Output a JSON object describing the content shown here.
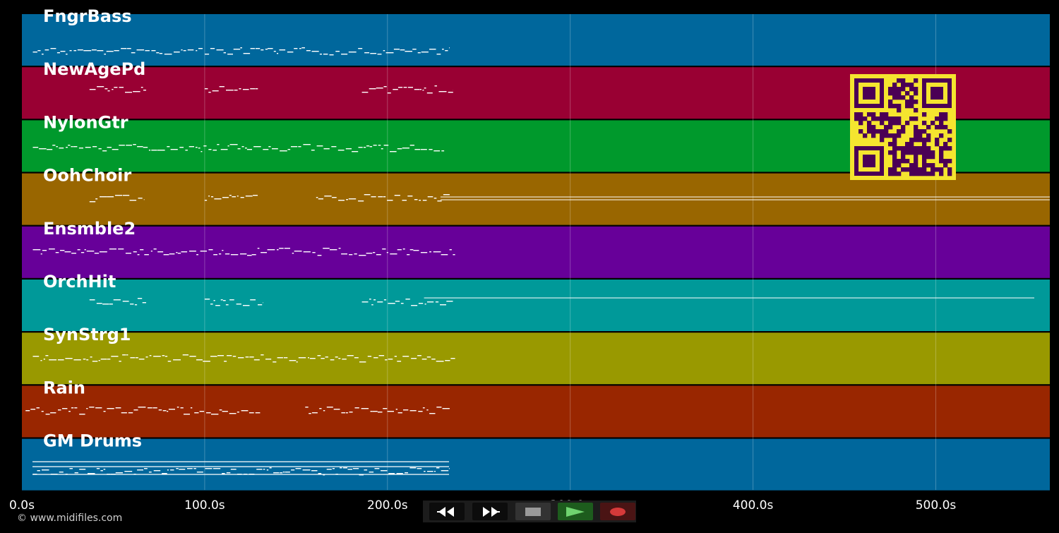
{
  "copyright": "© www.midifiles.com",
  "timeline": {
    "max_seconds": 563,
    "ticks": [
      "0.0s",
      "100.0s",
      "200.0s",
      "300.0s",
      "400.0s",
      "500.0s"
    ]
  },
  "tracks": [
    {
      "name": "FngrBass",
      "color": "#00679c"
    },
    {
      "name": "NewAgePd",
      "color": "#990033"
    },
    {
      "name": "NylonGtr",
      "color": "#00992c"
    },
    {
      "name": "OohChoir",
      "color": "#996600"
    },
    {
      "name": "Ensmble2",
      "color": "#670099"
    },
    {
      "name": "OrchHit",
      "color": "#009999"
    },
    {
      "name": "SynStrg1",
      "color": "#999900"
    },
    {
      "name": "Rain",
      "color": "#992600"
    },
    {
      "name": "GM Drums",
      "color": "#00679c"
    }
  ],
  "qr_code": {
    "foreground": "#4b0055",
    "background": "#f5e52f"
  },
  "transport": {
    "rewind": "rewind-icon",
    "fast_forward": "fast-forward-icon",
    "stop": "stop-icon",
    "play": "play-icon",
    "record": "record-icon"
  }
}
